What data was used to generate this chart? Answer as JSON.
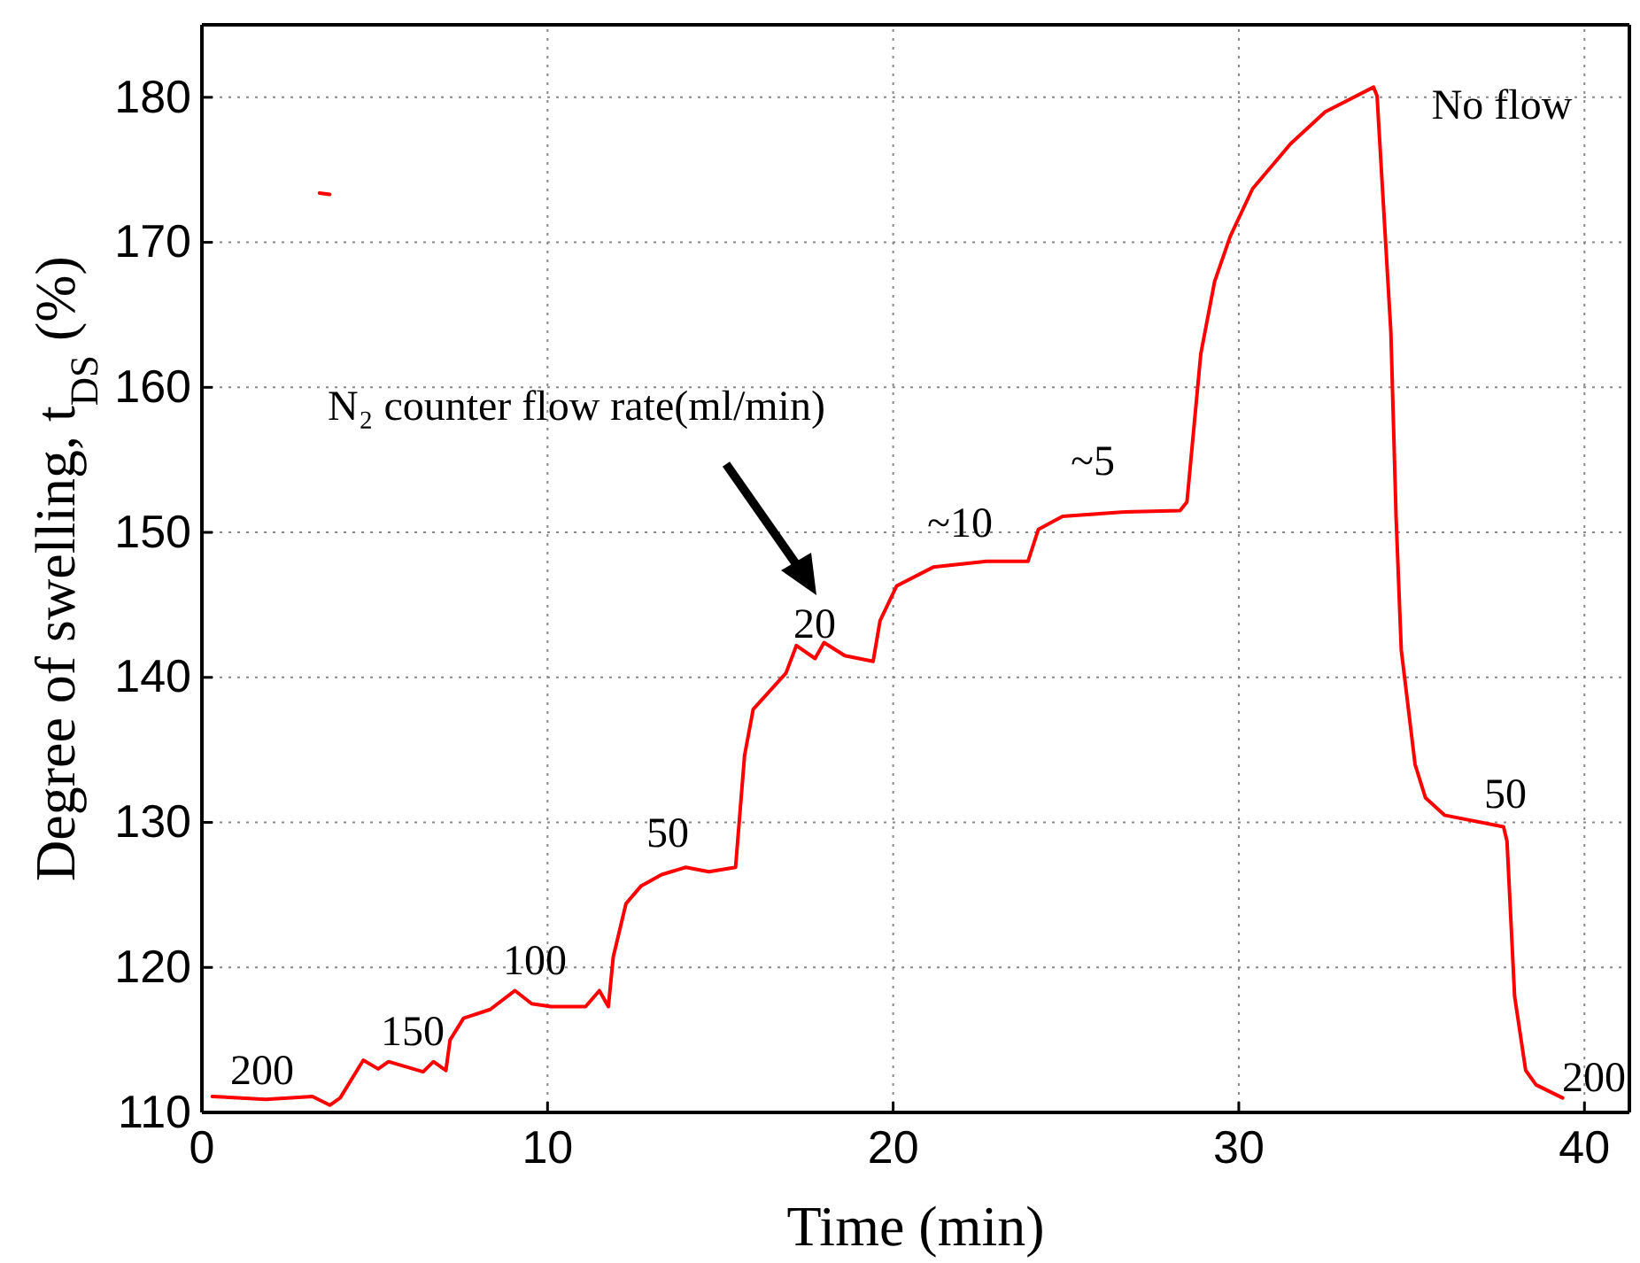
{
  "chart_data": {
    "type": "line",
    "xlabel": "Time (min)",
    "ylabel": "Degree of swelling, t$_{DS}$ (%)",
    "xlim": [
      0,
      41.3
    ],
    "ylim": [
      110,
      185
    ],
    "xticks": [
      0,
      10,
      20,
      30,
      40
    ],
    "yticks": [
      110,
      120,
      130,
      140,
      150,
      160,
      170,
      180
    ],
    "grid": true,
    "line_style": "solid",
    "marker": "none",
    "series": [
      {
        "color": "#ff0000",
        "x": [
          0.3,
          1.85,
          3.2,
          3.7,
          4.0,
          4.67,
          5.1,
          5.4,
          6.4,
          6.7,
          7.06,
          7.18,
          7.57,
          8.34,
          9.06,
          9.54,
          10.1,
          11.1,
          11.5,
          11.76,
          11.9,
          12.27,
          12.7,
          13.3,
          14.0,
          14.67,
          15.44,
          15.7,
          15.95,
          16.9,
          17.2,
          17.74,
          18.0,
          18.6,
          19.42,
          19.62,
          20.1,
          21.16,
          22.7,
          23.9,
          24.2,
          24.9,
          26.6,
          28.3,
          28.5,
          28.9,
          29.3,
          29.75,
          30.4,
          31.5,
          32.5,
          33.9,
          34.0,
          34.4,
          34.55,
          34.7,
          35.1,
          35.4,
          35.95,
          37.66,
          37.76,
          37.98,
          38.3,
          38.6,
          39.37
        ],
        "values": [
          111.1,
          110.9,
          111.1,
          110.5,
          111.0,
          113.6,
          113.0,
          113.5,
          112.8,
          113.5,
          112.9,
          115.0,
          116.5,
          117.1,
          118.4,
          117.5,
          117.3,
          117.3,
          118.4,
          117.3,
          120.7,
          124.4,
          125.6,
          126.4,
          126.9,
          126.6,
          126.9,
          134.6,
          137.8,
          140.3,
          142.2,
          141.3,
          142.4,
          141.5,
          141.1,
          143.9,
          146.3,
          147.6,
          148.0,
          148.0,
          150.2,
          151.1,
          151.4,
          151.5,
          152.1,
          162.3,
          167.3,
          170.4,
          173.7,
          176.8,
          179.0,
          180.7,
          180.1,
          163.8,
          151.1,
          141.9,
          134.0,
          131.7,
          130.5,
          129.7,
          128.7,
          118.0,
          112.9,
          111.9,
          111.0
        ]
      },
      {
        "color": "#ff0000",
        "x": [
          3.4,
          3.7
        ],
        "values": [
          173.4,
          173.3
        ]
      }
    ],
    "annotations": [
      "200",
      "150",
      "100",
      "50",
      "20",
      "~10",
      "~5",
      "No flow",
      "50",
      "200",
      "N₂ counter flow rate(ml/min)"
    ]
  }
}
